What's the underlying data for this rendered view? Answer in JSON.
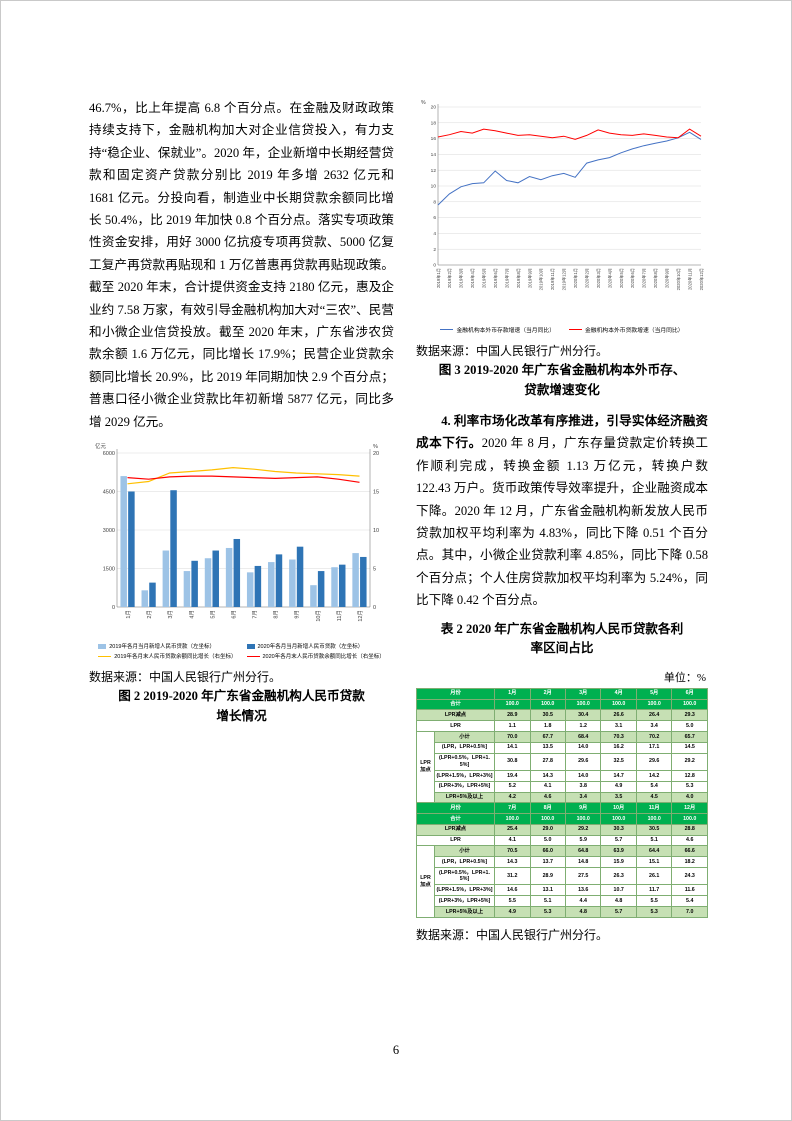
{
  "page": {
    "number": "6"
  },
  "data_source": "数据来源：中国人民银行广州分行。",
  "colors": {
    "table_header_green": "#00B050",
    "table_light_green": "#C6E0B4",
    "bar_2019_blue": "#9DC3E6",
    "bar_2020_blue": "#2E74B5",
    "line_yellow": "#FFC000",
    "line_red": "#FF0000",
    "line_blue": "#4472C4"
  },
  "left_column": {
    "paragraph1": "46.7%，比上年提高 6.8 个百分点。在金融及财政政策持续支持下，金融机构加大对企业信贷投入，有力支持“稳企业、保就业”。2020 年，企业新增中长期经营贷款和固定资产贷款分别比 2019 年多增 2632 亿元和 1681 亿元。分投向看，制造业中长期贷款余额同比增长 50.4%，比 2019 年加快 0.8 个百分点。落实专项政策性资金安排，用好 3000 亿抗疫专项再贷款、5000 亿复工复产再贷款再贴现和 1 万亿普惠再贷款再贴现政策。截至 2020 年末，合计提供资金支持 2180 亿元，惠及企业约 7.58 万家，有效引导金融机构加大对“三农”、民营和小微企业信贷投放。截至 2020 年末，广东省涉农贷款余额 1.6 万亿元，同比增长 17.9%；民营企业贷款余额同比增长 20.9%，比 2019 年同期加快 2.9 个百分点；普惠口径小微企业贷款比年初新增 5877 亿元，同比多增 2029 亿元。",
    "figure2_caption_line1": "图 2  2019-2020 年广东省金融机构人民币贷款",
    "figure2_caption_line2": "增长情况"
  },
  "right_column": {
    "figure3_caption_line1": "图 3  2019-2020 年广东省金融机构本外币存、",
    "figure3_caption_line2": "贷款增速变化",
    "paragraph4_lead": "4. 利率市场化改革有序推进，引导实体经济融资成本下行。",
    "paragraph4_rest": "2020 年 8 月，广东存量贷款定价转换工作顺利完成，转换金额 1.13 万亿元，转换户数 122.43 万户。货币政策传导效率提升，企业融资成本下降。2020 年 12 月，广东省金融机构新发放人民币贷款加权平均利率为 4.83%，同比下降 0.51 个百分点。其中，小微企业贷款利率 4.85%，同比下降 0.58 个百分点；个人住房贷款加权平均利率为 5.24%，同比下降 0.42 个百分点。",
    "table2_caption_line1": "表 2  2020 年广东省金融机构人民币贷款各利",
    "table2_caption_line2": "率区间占比",
    "unit_label": "单位：%",
    "table": {
      "group_label": "LPR加点",
      "halves": [
        {
          "month_header": [
            "月份",
            "1月",
            "2月",
            "3月",
            "4月",
            "5月",
            "6月"
          ],
          "simple_rows": [
            {
              "label": "合计",
              "shade": "strong",
              "values": [
                "100.0",
                "100.0",
                "100.0",
                "100.0",
                "100.0",
                "100.0"
              ]
            },
            {
              "label": "LPR减点",
              "shade": "light",
              "values": [
                "28.9",
                "30.5",
                "30.4",
                "26.6",
                "26.4",
                "29.3"
              ]
            },
            {
              "label": "LPR",
              "shade": "",
              "values": [
                "1.1",
                "1.8",
                "1.2",
                "3.1",
                "3.4",
                "5.0"
              ]
            }
          ],
          "group_rows": [
            {
              "label": "小计",
              "shade": "light",
              "values": [
                "70.0",
                "67.7",
                "68.4",
                "70.3",
                "70.2",
                "65.7"
              ]
            },
            {
              "label": "(LPR，LPR+0.5%]",
              "shade": "",
              "values": [
                "14.1",
                "13.5",
                "14.0",
                "16.2",
                "17.1",
                "14.5"
              ]
            },
            {
              "label": "(LPR+0.5%，LPR+1.5%]",
              "shade": "",
              "values": [
                "30.8",
                "27.8",
                "29.6",
                "32.5",
                "29.6",
                "29.2"
              ]
            },
            {
              "label": "(LPR+1.5%，LPR+3%]",
              "shade": "",
              "values": [
                "19.4",
                "14.3",
                "14.0",
                "14.7",
                "14.2",
                "12.8"
              ]
            },
            {
              "label": "(LPR+3%，LPR+5%]",
              "shade": "",
              "values": [
                "5.2",
                "4.1",
                "3.8",
                "4.9",
                "5.4",
                "5.3"
              ]
            },
            {
              "label": "LPR+5%及以上",
              "shade": "light",
              "values": [
                "4.2",
                "4.6",
                "3.4",
                "3.5",
                "4.5",
                "4.0"
              ]
            }
          ]
        },
        {
          "month_header": [
            "月份",
            "7月",
            "8月",
            "9月",
            "10月",
            "11月",
            "12月"
          ],
          "simple_rows": [
            {
              "label": "合计",
              "shade": "strong",
              "values": [
                "100.0",
                "100.0",
                "100.0",
                "100.0",
                "100.0",
                "100.0"
              ]
            },
            {
              "label": "LPR减点",
              "shade": "light",
              "values": [
                "25.4",
                "29.0",
                "29.2",
                "30.3",
                "30.5",
                "28.8"
              ]
            },
            {
              "label": "LPR",
              "shade": "",
              "values": [
                "4.1",
                "5.0",
                "5.9",
                "5.7",
                "5.1",
                "4.6"
              ]
            }
          ],
          "group_rows": [
            {
              "label": "小计",
              "shade": "light",
              "values": [
                "70.5",
                "66.0",
                "64.8",
                "63.9",
                "64.4",
                "66.6"
              ]
            },
            {
              "label": "(LPR，LPR+0.5%]",
              "shade": "",
              "values": [
                "14.3",
                "13.7",
                "14.8",
                "15.9",
                "15.1",
                "18.2"
              ]
            },
            {
              "label": "(LPR+0.5%，LPR+1.5%]",
              "shade": "",
              "values": [
                "31.2",
                "28.9",
                "27.5",
                "26.3",
                "26.1",
                "24.3"
              ]
            },
            {
              "label": "(LPR+1.5%，LPR+3%]",
              "shade": "",
              "values": [
                "14.6",
                "13.1",
                "13.6",
                "10.7",
                "11.7",
                "11.6"
              ]
            },
            {
              "label": "(LPR+3%，LPR+5%]",
              "shade": "",
              "values": [
                "5.5",
                "5.1",
                "4.4",
                "4.8",
                "5.5",
                "5.4"
              ]
            },
            {
              "label": "LPR+5%及以上",
              "shade": "light",
              "values": [
                "4.9",
                "5.3",
                "4.8",
                "5.7",
                "5.3",
                "7.0"
              ]
            }
          ]
        }
      ]
    }
  },
  "chart_data": [
    {
      "id": "figure2",
      "type": "bar+line",
      "title": "图 2 2019-2020 年广东省金融机构人民币贷款增长情况",
      "categories": [
        "1月",
        "2月",
        "3月",
        "4月",
        "5月",
        "6月",
        "7月",
        "8月",
        "9月",
        "10月",
        "11月",
        "12月"
      ],
      "left_axis": {
        "label": "亿元",
        "min": 0,
        "max": 6000,
        "ticks": [
          0,
          1500,
          3000,
          4500,
          6000
        ]
      },
      "right_axis": {
        "label": "%",
        "min": 0,
        "max": 20,
        "ticks": [
          0,
          5,
          10,
          15,
          20
        ]
      },
      "bar_series": [
        {
          "name": "2019年各月当月新增人民币贷款（左坐标）",
          "color": "#9DC3E6",
          "values": [
            5100,
            650,
            2200,
            1400,
            1900,
            2300,
            1350,
            1750,
            1850,
            850,
            1550,
            2100
          ]
        },
        {
          "name": "2020年各月当月新增人民币贷款（左坐标）",
          "color": "#2E74B5",
          "values": [
            4500,
            950,
            4550,
            1800,
            2200,
            2650,
            1600,
            2050,
            2350,
            1400,
            1650,
            1950
          ]
        }
      ],
      "line_series": [
        {
          "name": "2019年各月末人民币贷款余额同比增长（右坐标）",
          "color": "#FFC000",
          "values": [
            16.0,
            16.3,
            17.4,
            17.6,
            17.8,
            18.1,
            17.9,
            17.6,
            17.4,
            17.3,
            17.2,
            17.0
          ]
        },
        {
          "name": "2020年各月末人民币贷款余额同比增长（右坐标）",
          "color": "#FF0000",
          "values": [
            16.8,
            16.6,
            16.9,
            17.0,
            17.0,
            16.9,
            16.8,
            16.7,
            16.8,
            16.9,
            16.6,
            16.2
          ]
        }
      ],
      "legend_position": "bottom",
      "grid": true
    },
    {
      "id": "figure3",
      "type": "line",
      "title": "图 3 2019-2020 年广东省金融机构本外币存、贷款增速变化",
      "y_axis": {
        "label": "%",
        "min": 0,
        "max": 20,
        "tick_step": 2
      },
      "x": [
        "2019年1月",
        "2019年2月",
        "2019年3月",
        "2019年4月",
        "2019年5月",
        "2019年6月",
        "2019年7月",
        "2019年8月",
        "2019年9月",
        "2019年10月",
        "2019年11月",
        "2019年12月",
        "2020年1月",
        "2020年2月",
        "2020年3月",
        "2020年4月",
        "2020年5月",
        "2020年6月",
        "2020年7月",
        "2020年8月",
        "2020年9月",
        "2020年10月",
        "2020年11月",
        "2020年12月"
      ],
      "series": [
        {
          "name": "金融机构本外币存款增速（当月同比）",
          "color": "#4472C4",
          "values": [
            7.6,
            9.0,
            9.9,
            10.3,
            10.4,
            11.9,
            10.7,
            10.4,
            11.2,
            10.8,
            11.3,
            11.6,
            11.1,
            12.9,
            13.3,
            13.6,
            14.2,
            14.7,
            15.1,
            15.4,
            15.7,
            16.1,
            16.8,
            15.9
          ]
        },
        {
          "name": "金融机构本外币贷款增速（当月同比）",
          "color": "#FF0000",
          "values": [
            16.2,
            16.5,
            16.9,
            16.7,
            17.2,
            17.0,
            16.7,
            16.4,
            16.5,
            16.3,
            16.1,
            16.3,
            15.9,
            16.4,
            17.1,
            16.7,
            16.5,
            16.4,
            16.6,
            16.4,
            16.2,
            16.1,
            17.2,
            16.3
          ]
        }
      ],
      "legend_position": "bottom",
      "grid": true
    }
  ]
}
